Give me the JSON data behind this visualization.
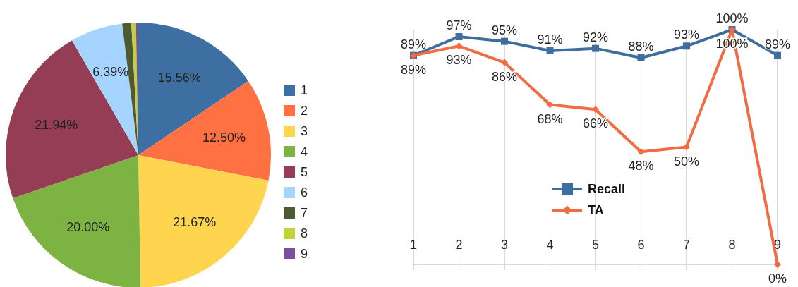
{
  "chart_data": [
    {
      "type": "pie",
      "categories": [
        "1",
        "2",
        "3",
        "4",
        "5",
        "6",
        "7",
        "8",
        "9"
      ],
      "values": [
        15.56,
        12.5,
        21.67,
        20.0,
        21.94,
        6.39,
        1.1,
        0.56,
        0.28
      ],
      "value_labels": [
        "15.56%",
        "12.50%",
        "21.67%",
        "20.00%",
        "21.94%",
        "6.39%",
        null,
        null,
        null
      ],
      "colors": [
        "#3e6fa3",
        "#ff7043",
        "#ffd54f",
        "#7cb342",
        "#943d55",
        "#a4d4ff",
        "#4e5a33",
        "#c0d33a",
        "#7b4fa0"
      ],
      "legend": "right"
    },
    {
      "type": "line",
      "categories": [
        "1",
        "2",
        "3",
        "4",
        "5",
        "6",
        "7",
        "8",
        "9"
      ],
      "ylim": [
        0,
        100
      ],
      "grid": "x",
      "legend": "bottom",
      "series": [
        {
          "name": "Recall",
          "color": "#3e6ea0",
          "marker": "square",
          "values": [
            89,
            97,
            95,
            91,
            92,
            88,
            93,
            100,
            89
          ],
          "value_labels": [
            "89%",
            "97%",
            "95%",
            "91%",
            "92%",
            "88%",
            "93%",
            "100%",
            "89%"
          ]
        },
        {
          "name": "TA",
          "color": "#f26b43",
          "marker": "diamond",
          "values": [
            89,
            93,
            86,
            68,
            66,
            48,
            50,
            100,
            0
          ],
          "value_labels": [
            "89%",
            "93%",
            "86%",
            "68%",
            "66%",
            "48%",
            "50%",
            "100%",
            "0%"
          ]
        }
      ]
    }
  ]
}
